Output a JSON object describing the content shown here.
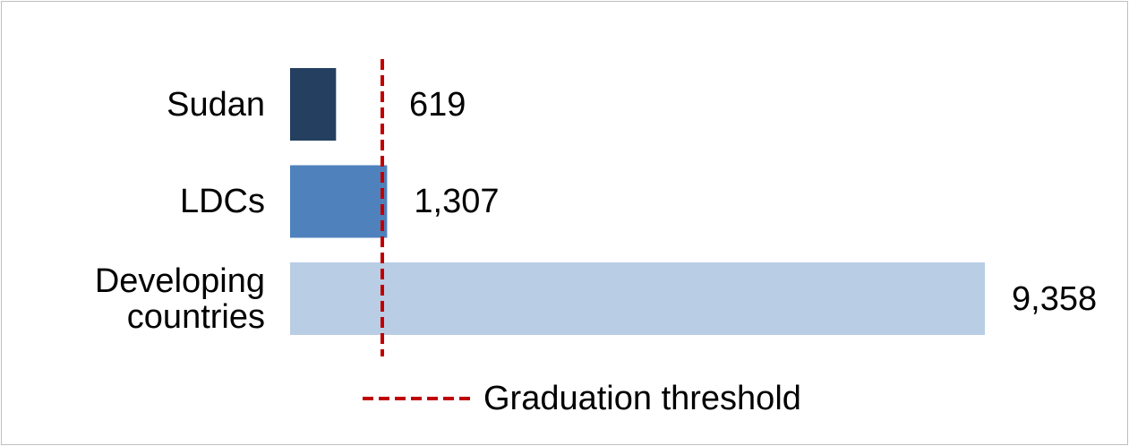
{
  "chart_data": {
    "type": "bar",
    "orientation": "horizontal",
    "categories": [
      "Sudan",
      "LDCs",
      "Developing countries"
    ],
    "values": [
      619,
      1307,
      9358
    ],
    "value_labels": [
      "619",
      "1,307",
      "9,358"
    ],
    "colors": [
      "#243f60",
      "#4f81bd",
      "#b9cde5"
    ],
    "xlim": [
      0,
      9358
    ],
    "threshold": {
      "name": "Graduation threshold",
      "value": 1242,
      "color": "#c00000"
    }
  }
}
